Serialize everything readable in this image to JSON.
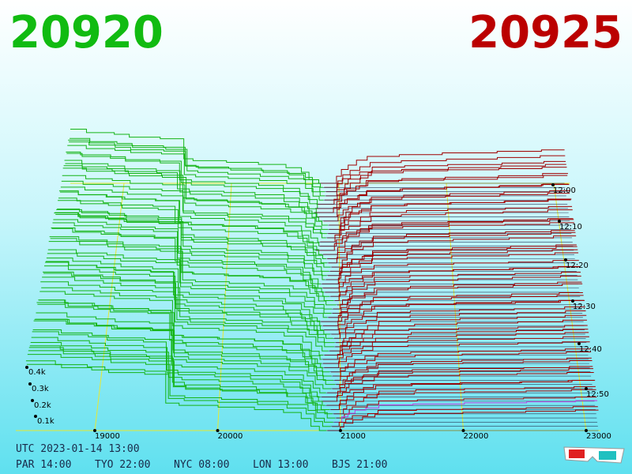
{
  "header": {
    "bid": "20920",
    "ask": "20925"
  },
  "price_axis": [
    "19000",
    "20000",
    "21000",
    "22000",
    "23000"
  ],
  "time_axis": [
    "12:00",
    "12:10",
    "12:20",
    "12:30",
    "12:40",
    "12:50"
  ],
  "depth_axis": [
    "0.4k",
    "0.3k",
    "0.2k",
    "0.1k"
  ],
  "footer": {
    "utc": "UTC 2023-01-14 13:00",
    "clocks": [
      "PAR 14:00",
      "TYO 22:00",
      "NYC 08:00",
      "LON 13:00",
      "BJS 21:00"
    ]
  }
}
